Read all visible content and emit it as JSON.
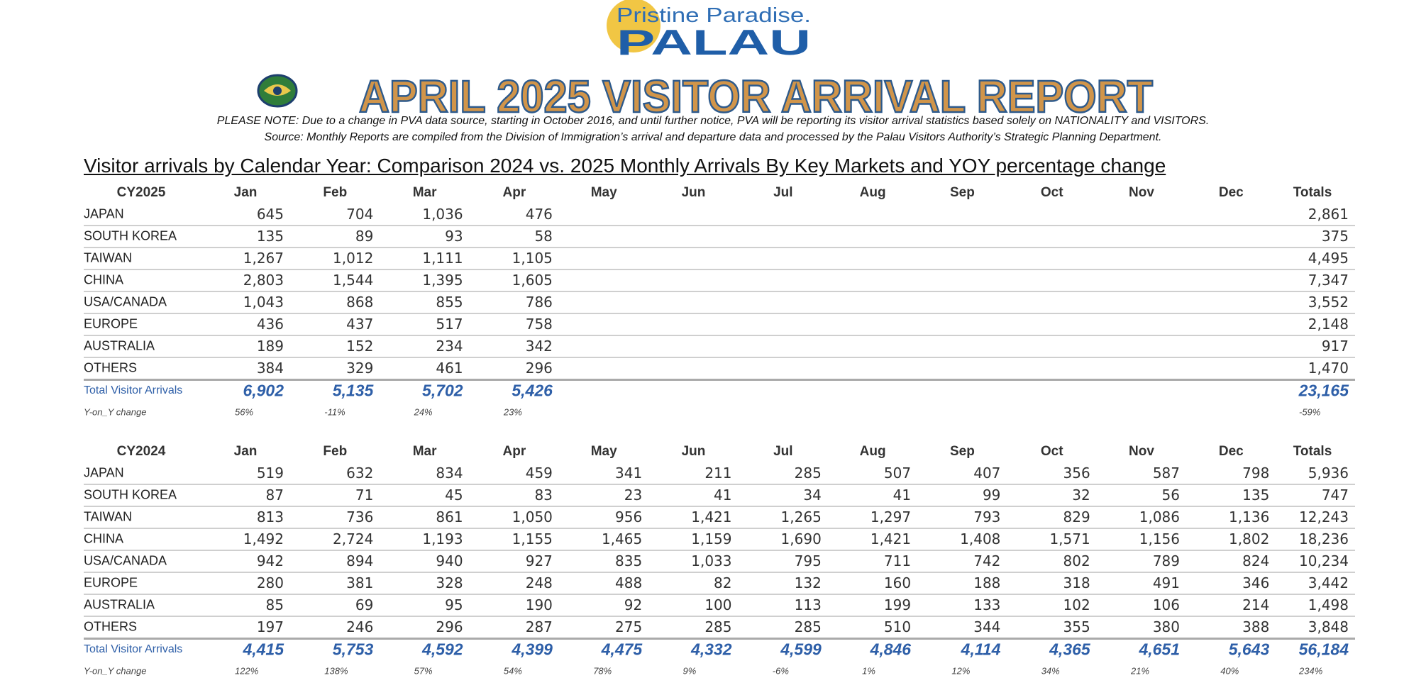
{
  "logo": {
    "tagline": "Pristine Paradise.",
    "name": "PALAU"
  },
  "title": "APRIL 2025 VISITOR ARRIVAL REPORT",
  "notes": [
    "PLEASE NOTE: Due to a change in PVA data source, starting in October 2016, and until further notice, PVA will be reporting its visitor arrival statistics based solely on NATIONALITY and VISITORS.",
    "Source: Monthly Reports are compiled from the Division of Immigration’s arrival and departure data and processed by the Palau Visitors Authority’s Strategic Planning Department."
  ],
  "section_title": "Visitor arrivals by Calendar Year: Comparison 2024 vs. 2025 Monthly Arrivals By Key Markets and YOY percentage change",
  "tables": [
    {
      "header": [
        "CY2025",
        "Jan",
        "Feb",
        "Mar",
        "Apr",
        "May",
        "Jun",
        "Jul",
        "Aug",
        "Sep",
        "Oct",
        "Nov",
        "Dec",
        "Totals"
      ],
      "rows": [
        {
          "name": "JAPAN",
          "values": [
            "645",
            "704",
            "1,036",
            "476"
          ],
          "total": "2,861"
        },
        {
          "name": "SOUTH KOREA",
          "values": [
            "135",
            "89",
            "93",
            "58"
          ],
          "total": "375"
        },
        {
          "name": "TAIWAN",
          "values": [
            "1,267",
            "1,012",
            "1,111",
            "1,105"
          ],
          "total": "4,495"
        },
        {
          "name": "CHINA",
          "values": [
            "2,803",
            "1,544",
            "1,395",
            "1,605"
          ],
          "total": "7,347"
        },
        {
          "name": "USA/CANADA",
          "values": [
            "1,043",
            "868",
            "855",
            "786"
          ],
          "total": "3,552"
        },
        {
          "name": "EUROPE",
          "values": [
            "436",
            "437",
            "517",
            "758"
          ],
          "total": "2,148"
        },
        {
          "name": "AUSTRALIA",
          "values": [
            "189",
            "152",
            "234",
            "342"
          ],
          "total": "917"
        },
        {
          "name": "OTHERS",
          "values": [
            "384",
            "329",
            "461",
            "296"
          ],
          "total": "1,470"
        }
      ],
      "total_row": {
        "name": "Total Visitor Arrivals",
        "values": [
          "6,902",
          "5,135",
          "5,702",
          "5,426"
        ],
        "total": "23,165"
      },
      "yoy_row": {
        "name": "Y-on_Y change",
        "values": [
          "56%",
          "-11%",
          "24%",
          "23%"
        ],
        "total": "-59%"
      }
    },
    {
      "header": [
        "CY2024",
        "Jan",
        "Feb",
        "Mar",
        "Apr",
        "May",
        "Jun",
        "Jul",
        "Aug",
        "Sep",
        "Oct",
        "Nov",
        "Dec",
        "Totals"
      ],
      "rows": [
        {
          "name": "JAPAN",
          "values": [
            "519",
            "632",
            "834",
            "459",
            "341",
            "211",
            "285",
            "507",
            "407",
            "356",
            "587",
            "798"
          ],
          "total": "5,936"
        },
        {
          "name": "SOUTH KOREA",
          "values": [
            "87",
            "71",
            "45",
            "83",
            "23",
            "41",
            "34",
            "41",
            "99",
            "32",
            "56",
            "135"
          ],
          "total": "747"
        },
        {
          "name": "TAIWAN",
          "values": [
            "813",
            "736",
            "861",
            "1,050",
            "956",
            "1,421",
            "1,265",
            "1,297",
            "793",
            "829",
            "1,086",
            "1,136"
          ],
          "total": "12,243"
        },
        {
          "name": "CHINA",
          "values": [
            "1,492",
            "2,724",
            "1,193",
            "1,155",
            "1,465",
            "1,159",
            "1,690",
            "1,421",
            "1,408",
            "1,571",
            "1,156",
            "1,802"
          ],
          "total": "18,236"
        },
        {
          "name": "USA/CANADA",
          "values": [
            "942",
            "894",
            "940",
            "927",
            "835",
            "1,033",
            "795",
            "711",
            "742",
            "802",
            "789",
            "824"
          ],
          "total": "10,234"
        },
        {
          "name": "EUROPE",
          "values": [
            "280",
            "381",
            "328",
            "248",
            "488",
            "82",
            "132",
            "160",
            "188",
            "318",
            "491",
            "346"
          ],
          "total": "3,442"
        },
        {
          "name": "AUSTRALIA",
          "values": [
            "85",
            "69",
            "95",
            "190",
            "92",
            "100",
            "113",
            "199",
            "133",
            "102",
            "106",
            "214"
          ],
          "total": "1,498"
        },
        {
          "name": "OTHERS",
          "values": [
            "197",
            "246",
            "296",
            "287",
            "275",
            "285",
            "285",
            "510",
            "344",
            "355",
            "380",
            "388"
          ],
          "total": "3,848"
        }
      ],
      "total_row": {
        "name": "Total Visitor Arrivals",
        "values": [
          "4,415",
          "5,753",
          "4,592",
          "4,399",
          "4,475",
          "4,332",
          "4,599",
          "4,846",
          "4,114",
          "4,365",
          "4,651",
          "5,643"
        ],
        "total": "56,184"
      },
      "yoy_row": {
        "name": "Y-on_Y change",
        "values": [
          "122%",
          "138%",
          "57%",
          "54%",
          "78%",
          "9%",
          "-6%",
          "1%",
          "12%",
          "34%",
          "21%",
          "40%"
        ],
        "total": "234%"
      }
    }
  ]
}
